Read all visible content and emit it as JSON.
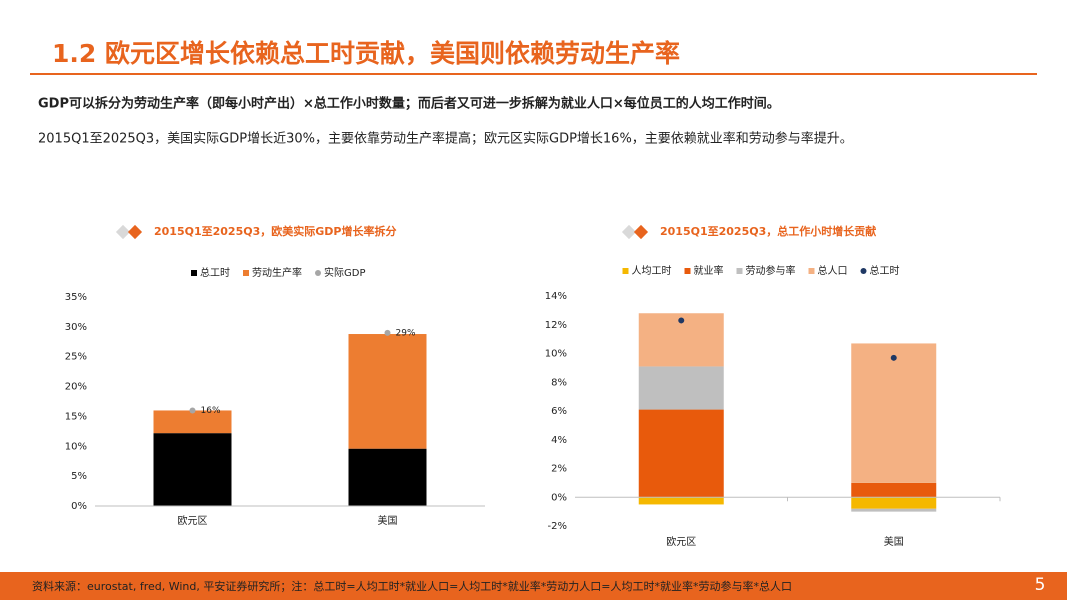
{
  "header": {
    "title": "1.2 欧元区增长依赖总工时贡献，美国则依赖劳动生产率"
  },
  "text": {
    "bold": "GDP可以拆分为劳动生产率（即每小时产出）×总工作小时数量；而后者又可进一步拆解为就业人口×每位员工的人均工作时间。",
    "normal": "2015Q1至2025Q3，美国实际GDP增长近30%，主要依靠劳动生产率提高；欧元区实际GDP增长16%，主要依赖就业率和劳动参与率提升。"
  },
  "footer": {
    "source": "资料来源：eurostat, fred, Wind, 平安证券研究所；注：总工时=人均工时*就业人口=人均工时*就业率*劳动力人口=人均工时*就业率*劳动参与率*总人口",
    "page": "5"
  },
  "chart_data": [
    {
      "type": "bar",
      "stacked": true,
      "title": "2015Q1至2025Q3，欧美实际GDP增长率拆分",
      "categories": [
        "欧元区",
        "美国"
      ],
      "series": [
        {
          "name": "总工时",
          "color": "#000000",
          "values": [
            12.2,
            9.6
          ]
        },
        {
          "name": "劳动生产率",
          "color": "#ed7d31",
          "values": [
            3.8,
            19.2
          ]
        },
        {
          "name": "实际GDP",
          "type": "scatter",
          "color": "#a6a6a6",
          "values": [
            16,
            29
          ],
          "value_labels": [
            "16%",
            "29%"
          ]
        }
      ],
      "ylim": [
        0,
        35
      ],
      "yticks": [
        {
          "value": 0,
          "label": "0%"
        },
        {
          "value": 5,
          "label": "5%"
        },
        {
          "value": 10,
          "label": "10%"
        },
        {
          "value": 15,
          "label": "15%"
        },
        {
          "value": 20,
          "label": "20%"
        },
        {
          "value": 25,
          "label": "25%"
        },
        {
          "value": 30,
          "label": "30%"
        },
        {
          "value": 35,
          "label": "35%"
        }
      ]
    },
    {
      "type": "bar",
      "stacked": true,
      "title": "2015Q1至2025Q3，总工作小时增长贡献",
      "categories": [
        "欧元区",
        "美国"
      ],
      "series": [
        {
          "name": "人均工时",
          "color": "#f5b800",
          "values": [
            -0.5,
            -0.8
          ]
        },
        {
          "name": "就业率",
          "color": "#e85a0c",
          "values": [
            6.1,
            1.0
          ]
        },
        {
          "name": "劳动参与率",
          "color": "#bfbfbf",
          "values": [
            3.0,
            -0.2
          ]
        },
        {
          "name": "总人口",
          "color": "#f4b183",
          "values": [
            3.7,
            9.7
          ]
        },
        {
          "name": "总工时",
          "type": "scatter",
          "color": "#1f3864",
          "values": [
            12.3,
            9.7
          ]
        }
      ],
      "ylim": [
        -2,
        14
      ],
      "yticks": [
        {
          "value": -2,
          "label": "-2%"
        },
        {
          "value": 0,
          "label": "0%"
        },
        {
          "value": 2,
          "label": "2%"
        },
        {
          "value": 4,
          "label": "4%"
        },
        {
          "value": 6,
          "label": "6%"
        },
        {
          "value": 8,
          "label": "8%"
        },
        {
          "value": 10,
          "label": "10%"
        },
        {
          "value": 12,
          "label": "12%"
        },
        {
          "value": 14,
          "label": "14%"
        }
      ]
    }
  ]
}
